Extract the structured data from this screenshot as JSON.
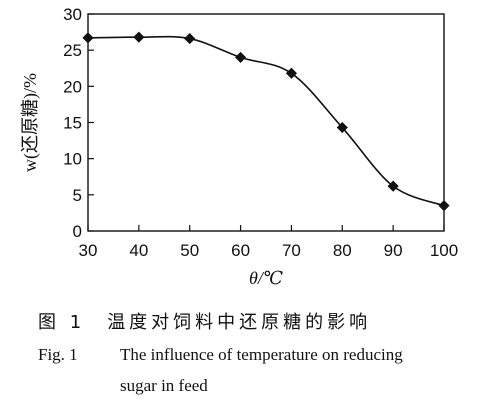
{
  "chart_data": {
    "type": "line",
    "title": "",
    "xlabel": "θ/℃",
    "ylabel": "w(还原糖)/%",
    "x": [
      30,
      40,
      50,
      60,
      70,
      80,
      90,
      100
    ],
    "series": [
      {
        "values": [
          26.7,
          26.8,
          26.6,
          24.0,
          21.8,
          14.3,
          6.2,
          3.5
        ]
      }
    ],
    "xlim": [
      30,
      100
    ],
    "ylim": [
      0,
      30
    ],
    "xticks": [
      "30",
      "40",
      "50",
      "60",
      "70",
      "80",
      "90",
      "100"
    ],
    "yticks": [
      "0",
      "5",
      "10",
      "15",
      "20",
      "25",
      "30"
    ],
    "marker": "diamond",
    "smooth": true,
    "grid": false,
    "legend": "none"
  },
  "caption": {
    "zh_number": "图 1",
    "zh_text": "温度对饲料中还原糖的影响",
    "en_number": "Fig. 1",
    "en_line1": "The influence of temperature on reducing",
    "en_line2": "sugar in feed"
  }
}
